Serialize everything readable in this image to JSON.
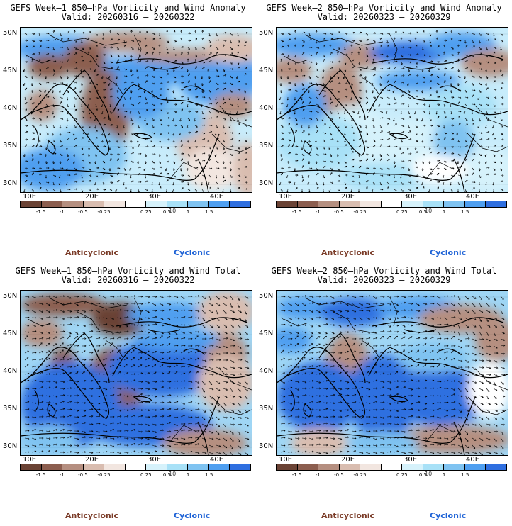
{
  "panels": [
    {
      "title_line1": "GEFS Week–1 850–hPa Vorticity and Wind Anomaly",
      "title_line2": "Valid: 20260316 – 20260322",
      "variant": "anomaly1"
    },
    {
      "title_line1": "GEFS Week–2 850–hPa Vorticity and Wind Anomaly",
      "title_line2": "Valid: 20260323 – 20260329",
      "variant": "anomaly2"
    },
    {
      "title_line1": "GEFS Week–1 850–hPa Vorticity and Wind Total",
      "title_line2": "Valid: 20260316 – 20260322",
      "variant": "total1"
    },
    {
      "title_line1": "GEFS Week–2 850–hPa Vorticity and Wind Total",
      "title_line2": "Valid: 20260323 – 20260329",
      "variant": "total2"
    }
  ],
  "axes": {
    "lat_labels": [
      "50N",
      "45N",
      "40N",
      "35N",
      "30N"
    ],
    "lon_labels": [
      "10E",
      "20E",
      "30E",
      "40E"
    ]
  },
  "colorbar": {
    "labels": [
      "-1.5",
      "-1",
      "-0.5",
      "-0.25",
      "0.25",
      "0.5",
      "1",
      "1.5"
    ],
    "extra_label": "10",
    "colors": [
      "#6b4335",
      "#8c5e4f",
      "#b58f80",
      "#d9bdb0",
      "#f2e6e0",
      "#ffffff",
      "#d6f2fb",
      "#a8e1f7",
      "#7fc3f1",
      "#4f9ff0",
      "#2f6fe0"
    ]
  },
  "legend": {
    "anticyclonic": "Anticyclonic",
    "cyclonic": "Cyclonic",
    "anticyclonic_color": "#7a3b27",
    "cyclonic_color": "#1f63d6"
  }
}
